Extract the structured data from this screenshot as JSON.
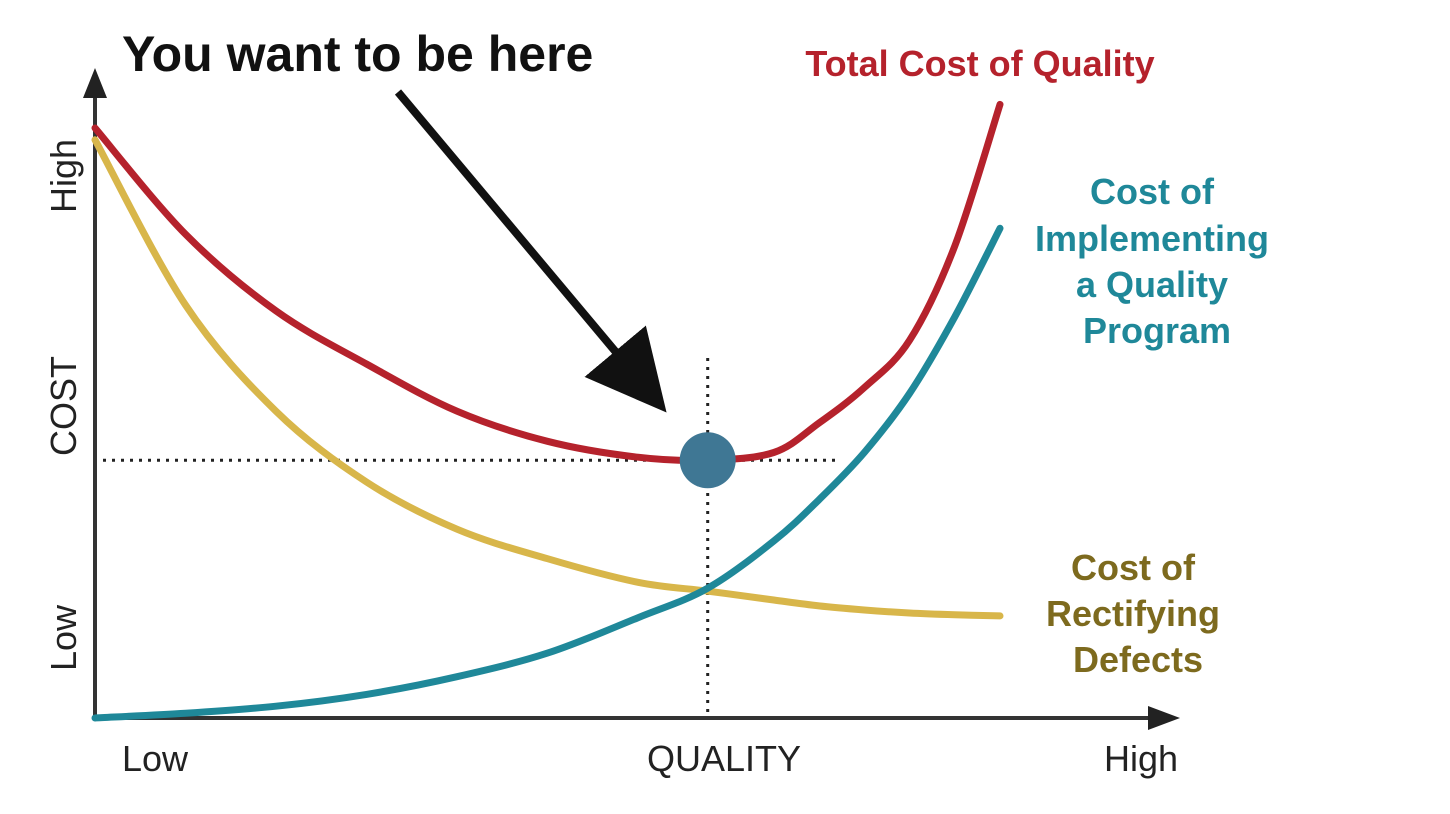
{
  "chart_data": {
    "type": "line",
    "title": "",
    "xlabel": "QUALITY",
    "ylabel": "COST",
    "x_tick_labels": {
      "low": "Low",
      "high": "High"
    },
    "y_tick_labels": {
      "low": "Low",
      "high": "High"
    },
    "xlim": [
      0,
      1
    ],
    "ylim": [
      0,
      1
    ],
    "grid": false,
    "legend": "none (series labeled directly on the right)",
    "x": [
      0,
      0.1,
      0.2,
      0.3,
      0.4,
      0.5,
      0.6,
      0.677,
      0.75,
      0.8,
      0.85,
      0.9,
      0.95,
      1.0
    ],
    "series": [
      {
        "name": "Total Cost of Quality",
        "color": "#b5222c",
        "values": [
          1.0,
          0.82,
          0.69,
          0.6,
          0.52,
          0.469,
          0.442,
          0.437,
          0.45,
          0.5,
          0.56,
          0.64,
          0.8,
          1.04
        ]
      },
      {
        "name": "Cost of Implementing a Quality Program",
        "color": "#1f8899",
        "values": [
          0.0,
          0.008,
          0.02,
          0.04,
          0.07,
          0.11,
          0.17,
          0.22,
          0.3,
          0.37,
          0.45,
          0.55,
          0.68,
          0.83
        ]
      },
      {
        "name": "Cost of Rectifying Defects",
        "color": "#d8b64a",
        "values": [
          0.98,
          0.7,
          0.52,
          0.4,
          0.32,
          0.27,
          0.23,
          0.215,
          0.2,
          0.19,
          0.183,
          0.178,
          0.175,
          0.173
        ]
      }
    ],
    "label_colors": {
      "Total Cost of Quality": "#b5222c",
      "Cost of Implementing a Quality Program": "#1f8899",
      "Cost of Rectifying Defects": "#7d6a1e"
    },
    "optimum_point": {
      "x": 0.677,
      "y": 0.437,
      "color": "#3f7794"
    },
    "annotation": {
      "text": "You want to be here"
    }
  }
}
